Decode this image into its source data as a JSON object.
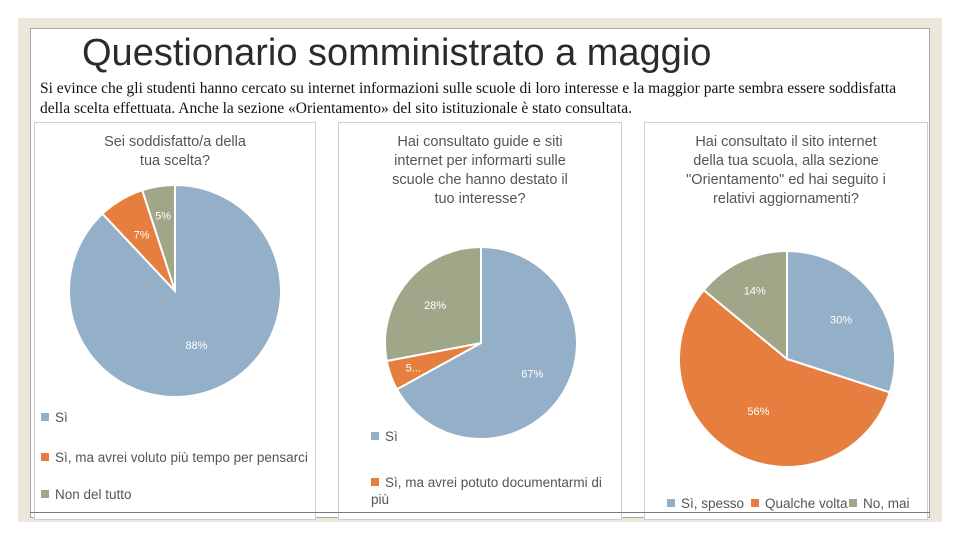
{
  "slide": {
    "title": "Questionario somministrato a maggio",
    "description": "Si evince che gli studenti hanno cercato su internet informazioni sulle scuole di loro interesse e la maggior parte sembra essere soddisfatta della scelta effettuata. Anche la sezione «Orientamento» del sito istituzionale è stato consultata."
  },
  "colors": {
    "blue": "#94afc8",
    "orange": "#e57e3e",
    "green": "#9fa788"
  },
  "chart_data": [
    {
      "type": "pie",
      "title": "Sei soddisfatto/a della tua scelta?",
      "labels": [
        "Sì",
        "Sì, ma avrei voluto più tempo per pensarci",
        "Non del tutto"
      ],
      "values": [
        88,
        7,
        5
      ],
      "data_labels": [
        "88%",
        "7%",
        "5%"
      ],
      "colors": [
        "#94afc8",
        "#e57e3e",
        "#9fa788"
      ],
      "legend": "bottom"
    },
    {
      "type": "pie",
      "title": "Hai consultato guide e siti internet per informarti sulle scuole che hanno destato il tuo interesse?",
      "labels": [
        "Sì",
        "Sì, ma avrei potuto documentarmi di più",
        ""
      ],
      "values": [
        67,
        5,
        28
      ],
      "data_labels": [
        "67%",
        "5...",
        "28%"
      ],
      "colors": [
        "#94afc8",
        "#e57e3e",
        "#9fa788"
      ],
      "legend": "bottom"
    },
    {
      "type": "pie",
      "title": "Hai consultato il sito internet della tua scuola, alla sezione \"Orientamento\" ed hai seguito i relativi aggiornamenti?",
      "labels": [
        "Sì, spesso",
        "Qualche volta",
        "No, mai"
      ],
      "values": [
        30,
        56,
        14
      ],
      "data_labels": [
        "30%",
        "56%",
        "14%"
      ],
      "colors": [
        "#94afc8",
        "#e57e3e",
        "#9fa788"
      ],
      "legend": "bottom"
    }
  ]
}
